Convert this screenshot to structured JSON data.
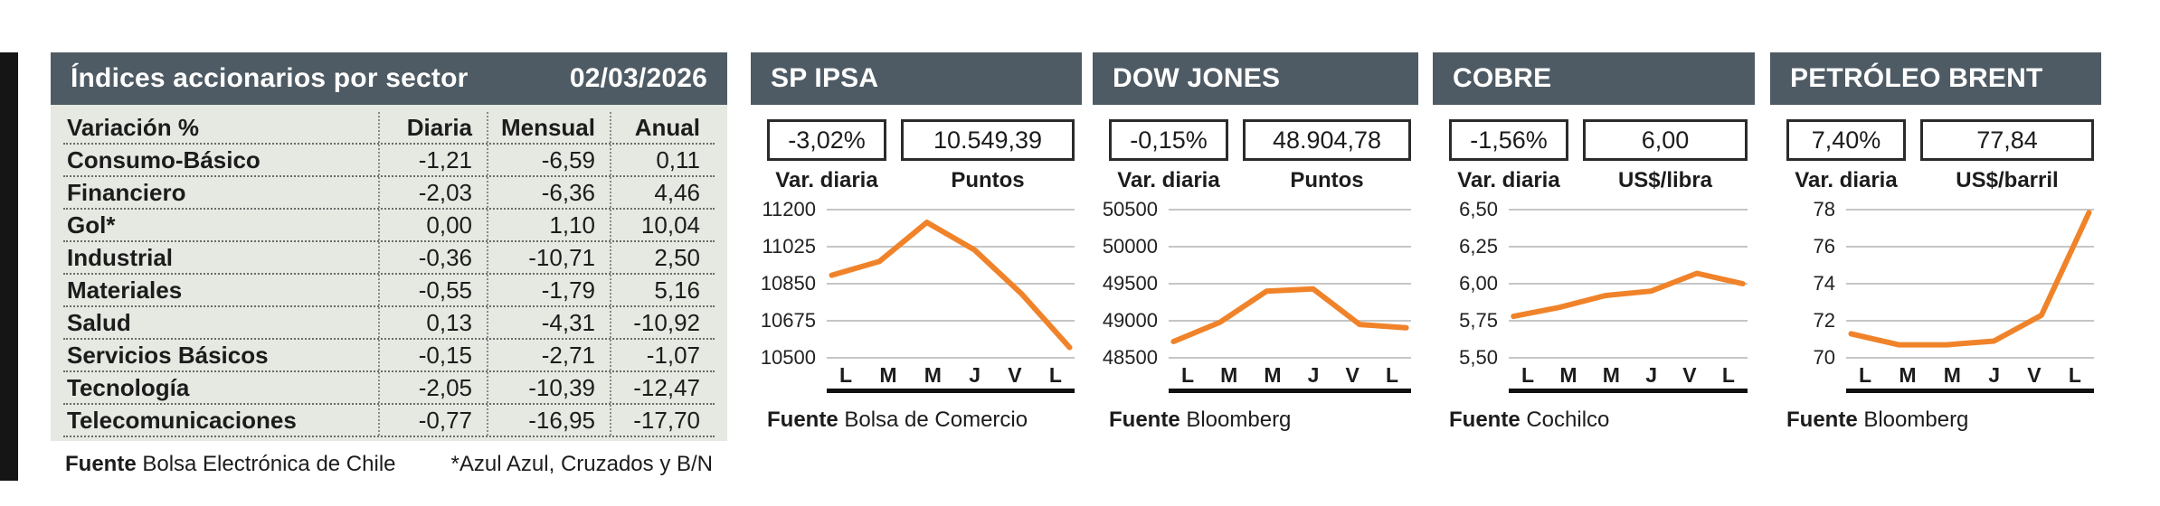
{
  "colors": {
    "header_bg": "#4E5B64",
    "header_text": "#FFFFFF",
    "table_bg": "#E5E9E1",
    "line": "#F0832A",
    "grid": "#C6C6C6",
    "ink": "#1C1C1C",
    "box_border": "#2B2B2B",
    "edge_bar": "#151515"
  },
  "chart_data": [
    {
      "type": "table",
      "title": "Índices accionarios por sector",
      "date": "02/03/2026",
      "columns": [
        "Variación %",
        "Diaria",
        "Mensual",
        "Anual"
      ],
      "rows": [
        [
          "Consumo-Básico",
          "-1,21",
          "-6,59",
          "0,11"
        ],
        [
          "Financiero",
          "-2,03",
          "-6,36",
          "4,46"
        ],
        [
          "Gol*",
          "0,00",
          "1,10",
          "10,04"
        ],
        [
          "Industrial",
          "-0,36",
          "-10,71",
          "2,50"
        ],
        [
          "Materiales",
          "-0,55",
          "-1,79",
          "5,16"
        ],
        [
          "Salud",
          "0,13",
          "-4,31",
          "-10,92"
        ],
        [
          "Servicios Básicos",
          "-0,15",
          "-2,71",
          "-1,07"
        ],
        [
          "Tecnología",
          "-2,05",
          "-10,39",
          "-12,47"
        ],
        [
          "Telecomunicaciones",
          "-0,77",
          "-16,95",
          "-17,70"
        ]
      ],
      "source_label": "Fuente",
      "source": "Bolsa Electrónica de Chile",
      "footnote": "*Azul Azul, Cruzados y B/N"
    },
    {
      "type": "line",
      "title": "SP IPSA",
      "var_label": "Var. diaria",
      "var_value": "-3,02%",
      "unit_label": "Puntos",
      "value": "10.549,39",
      "x": [
        "L",
        "M",
        "M",
        "J",
        "V",
        "L"
      ],
      "y_ticks": [
        "11200",
        "11025",
        "10850",
        "10675",
        "10500"
      ],
      "ylim": [
        10500,
        11200
      ],
      "values": [
        10890,
        10955,
        11140,
        11010,
        10800,
        10549
      ],
      "source_label": "Fuente",
      "source": "Bolsa de Comercio"
    },
    {
      "type": "line",
      "title": "DOW JONES",
      "var_label": "Var. diaria",
      "var_value": "-0,15%",
      "unit_label": "Puntos",
      "value": "48.904,78",
      "x": [
        "L",
        "M",
        "M",
        "J",
        "V",
        "L"
      ],
      "y_ticks": [
        "50500",
        "50000",
        "49500",
        "49000",
        "48500"
      ],
      "ylim": [
        48500,
        50500
      ],
      "values": [
        48720,
        48980,
        49400,
        49430,
        48950,
        48905
      ],
      "source_label": "Fuente",
      "source": "Bloomberg"
    },
    {
      "type": "line",
      "title": "COBRE",
      "var_label": "Var. diaria",
      "var_value": "-1,56%",
      "unit_label": "US$/libra",
      "value": "6,00",
      "x": [
        "L",
        "M",
        "M",
        "J",
        "V",
        "L"
      ],
      "y_ticks": [
        "6,50",
        "6,25",
        "6,00",
        "5,75",
        "5,50"
      ],
      "ylim": [
        5.5,
        6.5
      ],
      "values": [
        5.78,
        5.84,
        5.92,
        5.95,
        6.07,
        6.0
      ],
      "source_label": "Fuente",
      "source": "Cochilco"
    },
    {
      "type": "line",
      "title": "PETRÓLEO BRENT",
      "var_label": "Var. diaria",
      "var_value": "7,40%",
      "unit_label": "US$/barril",
      "value": "77,84",
      "x": [
        "L",
        "M",
        "M",
        "J",
        "V",
        "L"
      ],
      "y_ticks": [
        "78",
        "76",
        "74",
        "72",
        "70"
      ],
      "ylim": [
        70,
        78
      ],
      "values": [
        71.3,
        70.7,
        70.7,
        70.9,
        72.3,
        77.84
      ],
      "source_label": "Fuente",
      "source": "Bloomberg"
    }
  ]
}
